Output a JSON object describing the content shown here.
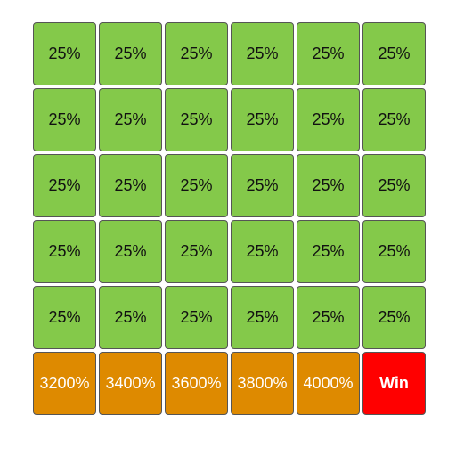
{
  "colors": {
    "green_tile": "#84c94a",
    "orange_tile": "#de8a00",
    "win_tile": "#ff0000"
  },
  "board": {
    "rows": [
      [
        "25%",
        "25%",
        "25%",
        "25%",
        "25%",
        "25%"
      ],
      [
        "25%",
        "25%",
        "25%",
        "25%",
        "25%",
        "25%"
      ],
      [
        "25%",
        "25%",
        "25%",
        "25%",
        "25%",
        "25%"
      ],
      [
        "25%",
        "25%",
        "25%",
        "25%",
        "25%",
        "25%"
      ],
      [
        "25%",
        "25%",
        "25%",
        "25%",
        "25%",
        "25%"
      ],
      [
        "3200%",
        "3400%",
        "3600%",
        "3800%",
        "4000%",
        "Win"
      ]
    ]
  }
}
